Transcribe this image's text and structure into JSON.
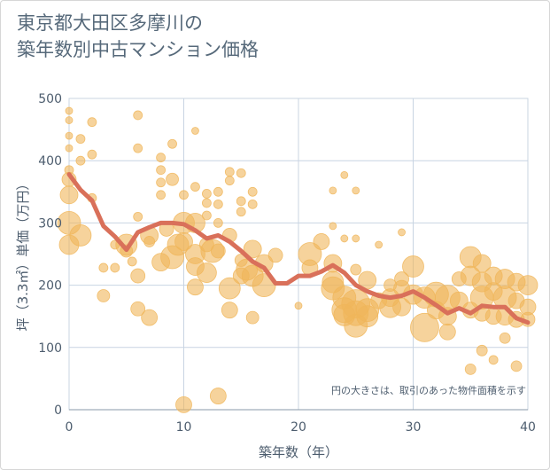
{
  "title_lines": [
    "東京都大田区多摩川の",
    "築年数別中古マンション価格"
  ],
  "colors": {
    "bubble": "#f0b65a",
    "line": "#d9705a",
    "grid": "#c8d4e2",
    "axis": "#8a98a8"
  },
  "chart_data": {
    "type": "scatter",
    "title": "東京都大田区多摩川の築年数別中古マンション価格",
    "xlabel": "築年数（年）",
    "ylabel": "坪（3.3㎡）単価（万円）",
    "xlim": [
      0,
      40
    ],
    "ylim": [
      0,
      500
    ],
    "x_ticks": [
      0,
      10,
      20,
      30,
      40
    ],
    "y_ticks": [
      0,
      100,
      200,
      300,
      400,
      500
    ],
    "grid": true,
    "note": "円の大きさは、取引のあった物件面積を示す",
    "series": [
      {
        "type": "bubble",
        "points": [
          [
            0,
            480,
            4
          ],
          [
            0,
            465,
            4
          ],
          [
            0,
            440,
            4
          ],
          [
            0,
            420,
            4
          ],
          [
            0,
            385,
            5
          ],
          [
            0,
            370,
            8
          ],
          [
            0,
            345,
            10
          ],
          [
            0,
            300,
            13
          ],
          [
            0,
            265,
            11
          ],
          [
            1,
            435,
            5
          ],
          [
            1,
            400,
            5
          ],
          [
            1,
            280,
            12
          ],
          [
            2,
            462,
            5
          ],
          [
            2,
            410,
            5
          ],
          [
            2,
            340,
            5
          ],
          [
            3,
            228,
            5
          ],
          [
            3,
            183,
            7
          ],
          [
            4,
            265,
            5
          ],
          [
            4,
            228,
            5
          ],
          [
            5,
            265,
            12
          ],
          [
            5,
            255,
            7
          ],
          [
            5.5,
            238,
            5
          ],
          [
            6,
            473,
            5
          ],
          [
            6,
            420,
            5
          ],
          [
            6,
            310,
            5
          ],
          [
            6,
            215,
            8
          ],
          [
            6,
            162,
            8
          ],
          [
            7,
            280,
            10
          ],
          [
            7,
            270,
            6
          ],
          [
            7,
            148,
            9
          ],
          [
            8,
            405,
            5
          ],
          [
            8,
            385,
            5
          ],
          [
            8,
            365,
            5
          ],
          [
            8,
            345,
            5
          ],
          [
            8,
            237,
            10
          ],
          [
            8.5,
            290,
            8
          ],
          [
            9,
            427,
            5
          ],
          [
            9,
            370,
            7
          ],
          [
            9,
            245,
            13
          ],
          [
            9.5,
            265,
            12
          ],
          [
            10,
            300,
            12
          ],
          [
            10,
            270,
            10
          ],
          [
            10,
            345,
            5
          ],
          [
            10,
            8,
            9
          ],
          [
            11,
            448,
            4
          ],
          [
            11,
            358,
            5
          ],
          [
            11,
            300,
            11
          ],
          [
            11,
            250,
            11
          ],
          [
            11,
            230,
            10
          ],
          [
            11,
            197,
            9
          ],
          [
            12,
            347,
            5
          ],
          [
            12,
            332,
            5
          ],
          [
            12,
            312,
            5
          ],
          [
            12,
            265,
            8
          ],
          [
            12,
            220,
            11
          ],
          [
            12.5,
            255,
            13
          ],
          [
            13,
            350,
            5
          ],
          [
            13,
            330,
            5
          ],
          [
            13,
            300,
            5
          ],
          [
            13,
            255,
            8
          ],
          [
            13,
            22,
            9
          ],
          [
            14,
            382,
            5
          ],
          [
            14,
            368,
            5
          ],
          [
            14,
            280,
            8
          ],
          [
            14,
            195,
            12
          ],
          [
            14,
            160,
            9
          ],
          [
            15,
            380,
            5
          ],
          [
            15,
            335,
            5
          ],
          [
            15,
            318,
            5
          ],
          [
            15,
            240,
            7
          ],
          [
            15,
            215,
            9
          ],
          [
            15.5,
            225,
            12
          ],
          [
            16,
            350,
            5
          ],
          [
            16,
            330,
            5
          ],
          [
            16,
            258,
            10
          ],
          [
            16,
            215,
            12
          ],
          [
            16,
            148,
            7
          ],
          [
            17,
            200,
            13
          ],
          [
            17,
            235,
            10
          ],
          [
            18,
            248,
            8
          ],
          [
            20,
            167,
            4
          ],
          [
            21,
            228,
            9
          ],
          [
            21,
            250,
            13
          ],
          [
            22,
            270,
            9
          ],
          [
            23,
            352,
            4
          ],
          [
            23,
            295,
            4
          ],
          [
            23,
            235,
            10
          ],
          [
            23,
            205,
            12
          ],
          [
            23,
            195,
            13
          ],
          [
            24,
            377,
            4
          ],
          [
            24,
            275,
            4
          ],
          [
            24,
            180,
            13
          ],
          [
            24,
            160,
            14
          ],
          [
            24,
            152,
            12
          ],
          [
            25,
            352,
            4
          ],
          [
            25,
            275,
            4
          ],
          [
            25,
            225,
            6
          ],
          [
            25,
            170,
            16
          ],
          [
            25,
            155,
            14
          ],
          [
            25,
            135,
            13
          ],
          [
            26,
            208,
            10
          ],
          [
            26,
            160,
            13
          ],
          [
            26,
            150,
            12
          ],
          [
            27,
            265,
            4
          ],
          [
            27,
            175,
            9
          ],
          [
            28,
            165,
            12
          ],
          [
            28,
            180,
            10
          ],
          [
            28,
            200,
            7
          ],
          [
            29,
            285,
            4
          ],
          [
            29,
            210,
            8
          ],
          [
            29,
            195,
            9
          ],
          [
            29,
            165,
            10
          ],
          [
            30,
            230,
            12
          ],
          [
            30,
            185,
            11
          ],
          [
            31,
            132,
            16
          ],
          [
            31,
            180,
            12
          ],
          [
            32,
            185,
            14
          ],
          [
            32,
            160,
            10
          ],
          [
            33,
            180,
            14
          ],
          [
            33,
            150,
            10
          ],
          [
            33,
            125,
            9
          ],
          [
            34,
            210,
            8
          ],
          [
            34,
            175,
            10
          ],
          [
            35,
            245,
            12
          ],
          [
            35,
            215,
            11
          ],
          [
            35,
            160,
            9
          ],
          [
            35,
            65,
            6
          ],
          [
            36,
            235,
            10
          ],
          [
            36,
            205,
            11
          ],
          [
            36,
            180,
            13
          ],
          [
            36,
            155,
            9
          ],
          [
            36,
            95,
            6
          ],
          [
            37,
            215,
            10
          ],
          [
            37,
            190,
            10
          ],
          [
            37,
            150,
            9
          ],
          [
            37,
            80,
            5
          ],
          [
            38,
            210,
            11
          ],
          [
            38,
            180,
            13
          ],
          [
            38,
            150,
            10
          ],
          [
            38,
            115,
            6
          ],
          [
            39,
            205,
            10
          ],
          [
            39,
            175,
            9
          ],
          [
            39,
            145,
            9
          ],
          [
            39,
            70,
            6
          ],
          [
            40,
            200,
            11
          ],
          [
            40,
            165,
            9
          ],
          [
            40,
            145,
            8
          ]
        ]
      },
      {
        "type": "line",
        "x": [
          0,
          1,
          2,
          3,
          4,
          5,
          6,
          7,
          8,
          9,
          10,
          11,
          12,
          13,
          14,
          15,
          16,
          17,
          18,
          19,
          20,
          21,
          22,
          23,
          24,
          25,
          26,
          27,
          28,
          29,
          30,
          31,
          32,
          33,
          34,
          35,
          36,
          37,
          38,
          39,
          40
        ],
        "y": [
          378,
          353,
          336,
          295,
          278,
          257,
          285,
          293,
          300,
          300,
          298,
          288,
          275,
          280,
          270,
          255,
          238,
          228,
          203,
          203,
          215,
          215,
          222,
          232,
          220,
          200,
          190,
          183,
          180,
          183,
          190,
          180,
          168,
          155,
          163,
          155,
          167,
          165,
          165,
          147,
          140
        ]
      }
    ]
  }
}
